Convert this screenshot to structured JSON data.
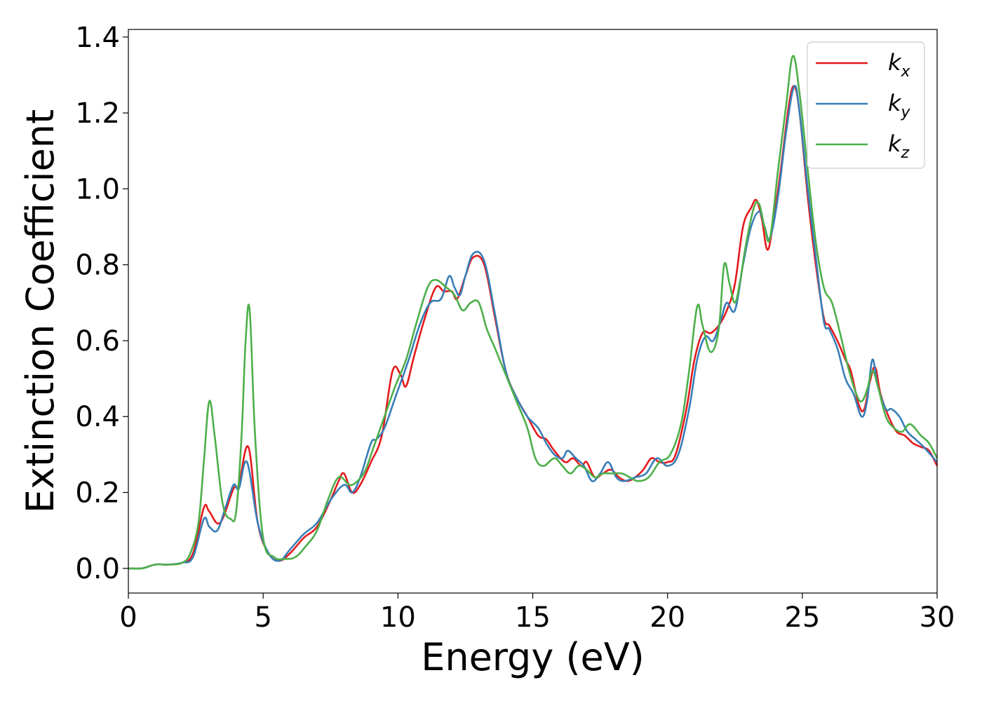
{
  "chart_data": {
    "type": "line",
    "title": "",
    "xlabel": "Energy (eV)",
    "ylabel": "Extinction Coefficient",
    "xlim": [
      0,
      30
    ],
    "ylim": [
      -0.065,
      1.42
    ],
    "xticks": [
      0,
      5,
      10,
      15,
      20,
      25,
      30
    ],
    "xtick_labels": [
      "0",
      "5",
      "10",
      "15",
      "20",
      "25",
      "30"
    ],
    "yticks": [
      0.0,
      0.2,
      0.4,
      0.6,
      0.8,
      1.0,
      1.2,
      1.4
    ],
    "ytick_labels": [
      "0.0",
      "0.2",
      "0.4",
      "0.6",
      "0.8",
      "1.0",
      "1.2",
      "1.4"
    ],
    "grid": false,
    "legend_position": "top-right",
    "series": [
      {
        "name": "kx",
        "label_base": "k",
        "label_sub": "x",
        "color": "#e41a1c",
        "x": [
          0,
          0.5,
          1,
          1.5,
          2,
          2.4,
          2.8,
          3.0,
          3.4,
          3.9,
          4.1,
          4.45,
          4.8,
          5.2,
          5.6,
          6.0,
          6.5,
          7.0,
          7.5,
          7.8,
          8.0,
          8.3,
          8.6,
          9.0,
          9.4,
          9.8,
          10.1,
          10.3,
          10.6,
          11.0,
          11.4,
          11.7,
          12.0,
          12.2,
          12.5,
          12.8,
          13.2,
          13.6,
          14.0,
          14.4,
          14.8,
          15.2,
          15.5,
          15.8,
          16.2,
          16.5,
          16.8,
          17.0,
          17.3,
          17.6,
          17.9,
          18.2,
          18.5,
          18.8,
          19.1,
          19.4,
          19.7,
          20.0,
          20.3,
          20.7,
          21.0,
          21.3,
          21.6,
          21.9,
          22.2,
          22.5,
          22.8,
          23.1,
          23.3,
          23.5,
          23.7,
          23.9,
          24.2,
          24.5,
          24.7,
          24.9,
          25.2,
          25.5,
          25.8,
          26.0,
          26.3,
          26.6,
          26.8,
          27.1,
          27.3,
          27.5,
          27.7,
          27.9,
          28.2,
          28.5,
          28.8,
          29.1,
          29.4,
          29.7,
          30.0
        ],
        "y": [
          0.0,
          0.0,
          0.01,
          0.01,
          0.015,
          0.04,
          0.16,
          0.15,
          0.12,
          0.21,
          0.22,
          0.32,
          0.12,
          0.04,
          0.02,
          0.04,
          0.08,
          0.11,
          0.18,
          0.23,
          0.25,
          0.2,
          0.22,
          0.28,
          0.35,
          0.52,
          0.51,
          0.48,
          0.56,
          0.66,
          0.74,
          0.73,
          0.73,
          0.71,
          0.77,
          0.82,
          0.8,
          0.66,
          0.52,
          0.45,
          0.4,
          0.35,
          0.34,
          0.31,
          0.28,
          0.29,
          0.27,
          0.28,
          0.24,
          0.25,
          0.26,
          0.24,
          0.23,
          0.24,
          0.26,
          0.29,
          0.28,
          0.28,
          0.3,
          0.42,
          0.55,
          0.62,
          0.62,
          0.64,
          0.68,
          0.75,
          0.9,
          0.95,
          0.97,
          0.92,
          0.84,
          0.9,
          1.05,
          1.22,
          1.27,
          1.2,
          0.98,
          0.8,
          0.66,
          0.64,
          0.6,
          0.55,
          0.52,
          0.43,
          0.42,
          0.49,
          0.53,
          0.46,
          0.4,
          0.36,
          0.35,
          0.33,
          0.32,
          0.31,
          0.27
        ]
      },
      {
        "name": "ky",
        "label_base": "k",
        "label_sub": "y",
        "color": "#377eb8",
        "x": [
          0,
          0.5,
          1,
          1.5,
          2,
          2.4,
          2.8,
          3.0,
          3.3,
          3.6,
          3.9,
          4.1,
          4.4,
          4.8,
          5.2,
          5.6,
          6.0,
          6.5,
          7.0,
          7.5,
          8.0,
          8.3,
          8.6,
          9.0,
          9.2,
          9.5,
          9.9,
          10.4,
          10.8,
          11.2,
          11.6,
          11.9,
          12.1,
          12.3,
          12.5,
          12.8,
          13.2,
          13.6,
          14.0,
          14.4,
          14.8,
          15.2,
          15.5,
          15.8,
          16.1,
          16.3,
          16.6,
          16.9,
          17.2,
          17.5,
          17.8,
          18.1,
          18.4,
          18.8,
          19.2,
          19.6,
          20.0,
          20.4,
          20.8,
          21.1,
          21.4,
          21.7,
          22.0,
          22.2,
          22.5,
          22.8,
          23.1,
          23.4,
          23.6,
          23.8,
          24.1,
          24.4,
          24.7,
          24.9,
          25.2,
          25.5,
          25.8,
          26.0,
          26.3,
          26.6,
          26.9,
          27.2,
          27.4,
          27.6,
          27.8,
          28.1,
          28.3,
          28.6,
          28.9,
          29.2,
          29.5,
          30.0
        ],
        "y": [
          0.0,
          0.0,
          0.01,
          0.01,
          0.015,
          0.03,
          0.13,
          0.11,
          0.1,
          0.16,
          0.22,
          0.21,
          0.28,
          0.12,
          0.04,
          0.02,
          0.05,
          0.09,
          0.12,
          0.18,
          0.22,
          0.2,
          0.24,
          0.33,
          0.34,
          0.37,
          0.45,
          0.55,
          0.64,
          0.7,
          0.71,
          0.77,
          0.74,
          0.72,
          0.77,
          0.83,
          0.81,
          0.67,
          0.52,
          0.45,
          0.4,
          0.37,
          0.33,
          0.3,
          0.29,
          0.31,
          0.29,
          0.27,
          0.23,
          0.25,
          0.28,
          0.24,
          0.23,
          0.24,
          0.25,
          0.29,
          0.27,
          0.3,
          0.42,
          0.55,
          0.61,
          0.6,
          0.66,
          0.7,
          0.68,
          0.8,
          0.9,
          0.94,
          0.9,
          0.87,
          0.98,
          1.15,
          1.27,
          1.2,
          1.0,
          0.82,
          0.65,
          0.63,
          0.58,
          0.5,
          0.46,
          0.4,
          0.44,
          0.55,
          0.48,
          0.42,
          0.42,
          0.4,
          0.36,
          0.34,
          0.32,
          0.28
        ]
      },
      {
        "name": "kz",
        "label_base": "k",
        "label_sub": "z",
        "color": "#4daf4a",
        "x": [
          0,
          0.5,
          1,
          1.5,
          2,
          2.3,
          2.6,
          2.8,
          3.0,
          3.2,
          3.5,
          3.8,
          4.0,
          4.2,
          4.35,
          4.5,
          4.7,
          5.0,
          5.4,
          5.8,
          6.2,
          6.6,
          7.0,
          7.4,
          7.8,
          8.2,
          8.5,
          8.8,
          9.1,
          9.5,
          9.9,
          10.3,
          10.7,
          11.1,
          11.4,
          11.8,
          12.1,
          12.4,
          12.7,
          13.0,
          13.3,
          13.6,
          14.0,
          14.4,
          14.8,
          15.1,
          15.4,
          15.8,
          16.1,
          16.4,
          16.7,
          17.0,
          17.3,
          17.6,
          17.9,
          18.3,
          18.6,
          18.9,
          19.3,
          19.7,
          20.1,
          20.5,
          20.8,
          21.1,
          21.3,
          21.6,
          21.9,
          22.1,
          22.3,
          22.5,
          22.7,
          22.9,
          23.2,
          23.4,
          23.6,
          23.8,
          24.1,
          24.4,
          24.65,
          24.9,
          25.2,
          25.5,
          25.8,
          26.1,
          26.4,
          26.7,
          27.0,
          27.2,
          27.4,
          27.6,
          27.8,
          28.1,
          28.4,
          28.7,
          29.0,
          29.4,
          29.7,
          30.0
        ],
        "y": [
          0.0,
          0.0,
          0.01,
          0.01,
          0.015,
          0.04,
          0.12,
          0.28,
          0.44,
          0.35,
          0.17,
          0.13,
          0.15,
          0.35,
          0.6,
          0.68,
          0.35,
          0.08,
          0.03,
          0.025,
          0.03,
          0.06,
          0.1,
          0.18,
          0.24,
          0.22,
          0.23,
          0.26,
          0.32,
          0.4,
          0.48,
          0.55,
          0.65,
          0.74,
          0.76,
          0.74,
          0.72,
          0.68,
          0.7,
          0.7,
          0.63,
          0.58,
          0.51,
          0.44,
          0.37,
          0.29,
          0.27,
          0.29,
          0.27,
          0.25,
          0.27,
          0.26,
          0.24,
          0.25,
          0.25,
          0.25,
          0.24,
          0.23,
          0.24,
          0.28,
          0.3,
          0.38,
          0.52,
          0.69,
          0.64,
          0.57,
          0.63,
          0.8,
          0.75,
          0.7,
          0.76,
          0.85,
          0.95,
          0.96,
          0.9,
          0.87,
          1.05,
          1.22,
          1.35,
          1.25,
          1.05,
          0.86,
          0.74,
          0.7,
          0.62,
          0.53,
          0.46,
          0.44,
          0.47,
          0.52,
          0.48,
          0.4,
          0.37,
          0.36,
          0.38,
          0.35,
          0.33,
          0.29
        ]
      }
    ]
  }
}
